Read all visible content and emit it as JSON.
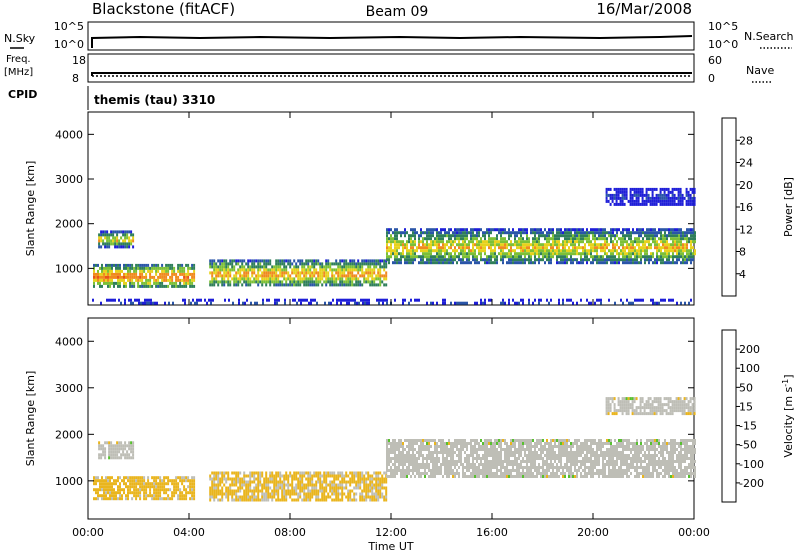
{
  "header": {
    "title": "Blackstone (fitACF)",
    "beam": "Beam 09",
    "date": "16/Mar/2008"
  },
  "noise_panel": {
    "left_label": "N.Sky",
    "right_label": "N.Search",
    "left_ticks": [
      "10^5",
      "10^0"
    ],
    "right_ticks": [
      "10^5",
      "10^0"
    ]
  },
  "freq_panel": {
    "left_label_line1": "Freq.",
    "left_label_line2": "[MHz]",
    "right_label": "Nave",
    "left_ticks": [
      "18",
      "8"
    ],
    "right_ticks": [
      "60",
      "0"
    ]
  },
  "cpid": {
    "label": "CPID",
    "value": "themis (tau) 3310"
  },
  "x_axis": {
    "title": "Time UT",
    "ticks": [
      "00:00",
      "04:00",
      "08:00",
      "12:00",
      "16:00",
      "20:00",
      "00:00"
    ],
    "range_hours": [
      0,
      24
    ]
  },
  "colors": {
    "power": [
      "#1e1ed8",
      "#2a55a8",
      "#2f7f5a",
      "#7cc036",
      "#e7d21c",
      "#f08a1e",
      "#e85418",
      "#e01212"
    ],
    "velocity": [
      "#1e1ed8",
      "#2a55a8",
      "#2f7f5a",
      "#58c030",
      "#bebeb6",
      "#e9b51e",
      "#ec8a1c",
      "#e85a18",
      "#e01212"
    ]
  },
  "chart_data": [
    {
      "type": "heatmap",
      "title": "Power",
      "ylabel": "Slant Range [km]",
      "ylim": [
        180,
        4500
      ],
      "y_ticks": [
        "1000",
        "2000",
        "3000",
        "4000"
      ],
      "colorbar": {
        "label": "Power [dB]",
        "range": [
          0,
          32
        ],
        "tick_values": [
          4,
          8,
          12,
          16,
          20,
          24,
          28
        ],
        "ticks": [
          "4",
          "8",
          "12",
          "16",
          "20",
          "24",
          "28"
        ]
      },
      "echo_regions": [
        {
          "t_start": 0.2,
          "t_end": 4.2,
          "range_low": 600,
          "range_high": 1100,
          "power_db": 24
        },
        {
          "t_start": 0.4,
          "t_end": 1.8,
          "range_low": 1500,
          "range_high": 1850,
          "power_db": 20
        },
        {
          "t_start": 4.8,
          "t_end": 11.8,
          "range_low": 600,
          "range_high": 1200,
          "power_db": 22
        },
        {
          "t_start": 11.8,
          "t_end": 24.0,
          "range_low": 1100,
          "range_high": 1900,
          "power_db": 20
        },
        {
          "t_start": 20.5,
          "t_end": 24.0,
          "range_low": 2450,
          "range_high": 2800,
          "power_db": 6
        },
        {
          "t_start": 0.0,
          "t_end": 24.0,
          "range_low": 200,
          "range_high": 320,
          "power_db": 6
        }
      ]
    },
    {
      "type": "heatmap",
      "title": "Velocity",
      "ylabel": "Slant Range [km]",
      "ylim": [
        180,
        4500
      ],
      "y_ticks": [
        "1000",
        "2000",
        "3000",
        "4000"
      ],
      "colorbar": {
        "label": "Velocity [m s-1]",
        "label_main": "Velocity [m s",
        "label_exp": "-1",
        "label_tail": "]",
        "range": [
          -250,
          250
        ],
        "tick_values": [
          200,
          100,
          50,
          15,
          -15,
          -50,
          -100,
          -200
        ],
        "ticks": [
          "200",
          "100",
          "50",
          "15",
          "-15",
          "-50",
          "-100",
          "-200"
        ]
      },
      "echo_regions": [
        {
          "t_start": 0.2,
          "t_end": 4.2,
          "range_low": 600,
          "range_high": 1100,
          "velocity": -40
        },
        {
          "t_start": 0.4,
          "t_end": 1.8,
          "range_low": 1500,
          "range_high": 1850,
          "velocity": 0
        },
        {
          "t_start": 4.8,
          "t_end": 11.8,
          "range_low": 600,
          "range_high": 1200,
          "velocity": -35
        },
        {
          "t_start": 11.8,
          "t_end": 24.0,
          "range_low": 1100,
          "range_high": 1900,
          "velocity": 0
        },
        {
          "t_start": 20.5,
          "t_end": 24.0,
          "range_low": 2450,
          "range_high": 2800,
          "velocity": -10
        }
      ]
    }
  ]
}
